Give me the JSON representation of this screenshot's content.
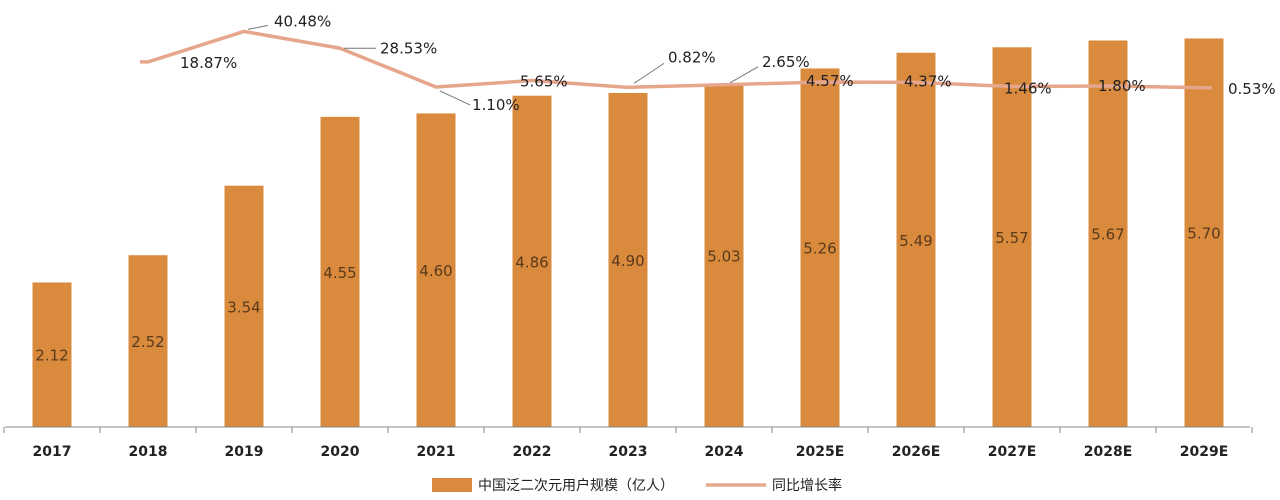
{
  "chart_data": {
    "type": "bar",
    "categories": [
      "2017",
      "2018",
      "2019",
      "2020",
      "2021",
      "2022",
      "2023",
      "2024",
      "2025E",
      "2026E",
      "2027E",
      "2028E",
      "2029E"
    ],
    "series": [
      {
        "name": "中国泛二次元用户规模（亿人）",
        "type": "bar",
        "values": [
          2.12,
          2.52,
          3.54,
          4.55,
          4.6,
          4.86,
          4.9,
          5.03,
          5.26,
          5.49,
          5.57,
          5.67,
          5.7
        ],
        "labels": [
          "2.12",
          "2.52",
          "3.54",
          "4.55",
          "4.60",
          "4.86",
          "4.90",
          "5.03",
          "5.26",
          "5.49",
          "5.57",
          "5.67",
          "5.70"
        ],
        "color": "#d98a3c"
      },
      {
        "name": "同比增长率",
        "type": "line",
        "values": [
          null,
          18.87,
          40.48,
          28.53,
          1.1,
          5.65,
          0.82,
          2.65,
          4.57,
          4.37,
          1.46,
          1.8,
          0.53
        ],
        "labels": [
          "",
          "18.87%",
          "40.48%",
          "28.53%",
          "1.10%",
          "5.65%",
          "0.82%",
          "2.65%",
          "4.57%",
          "4.37%",
          "1.46%",
          "1.80%",
          "0.53%"
        ],
        "color": "#e6a68c"
      }
    ],
    "y_left_range": [
      0,
      6
    ],
    "y_right_range": [
      -240,
      50
    ],
    "grid": false,
    "legend_position": "bottom-center"
  }
}
